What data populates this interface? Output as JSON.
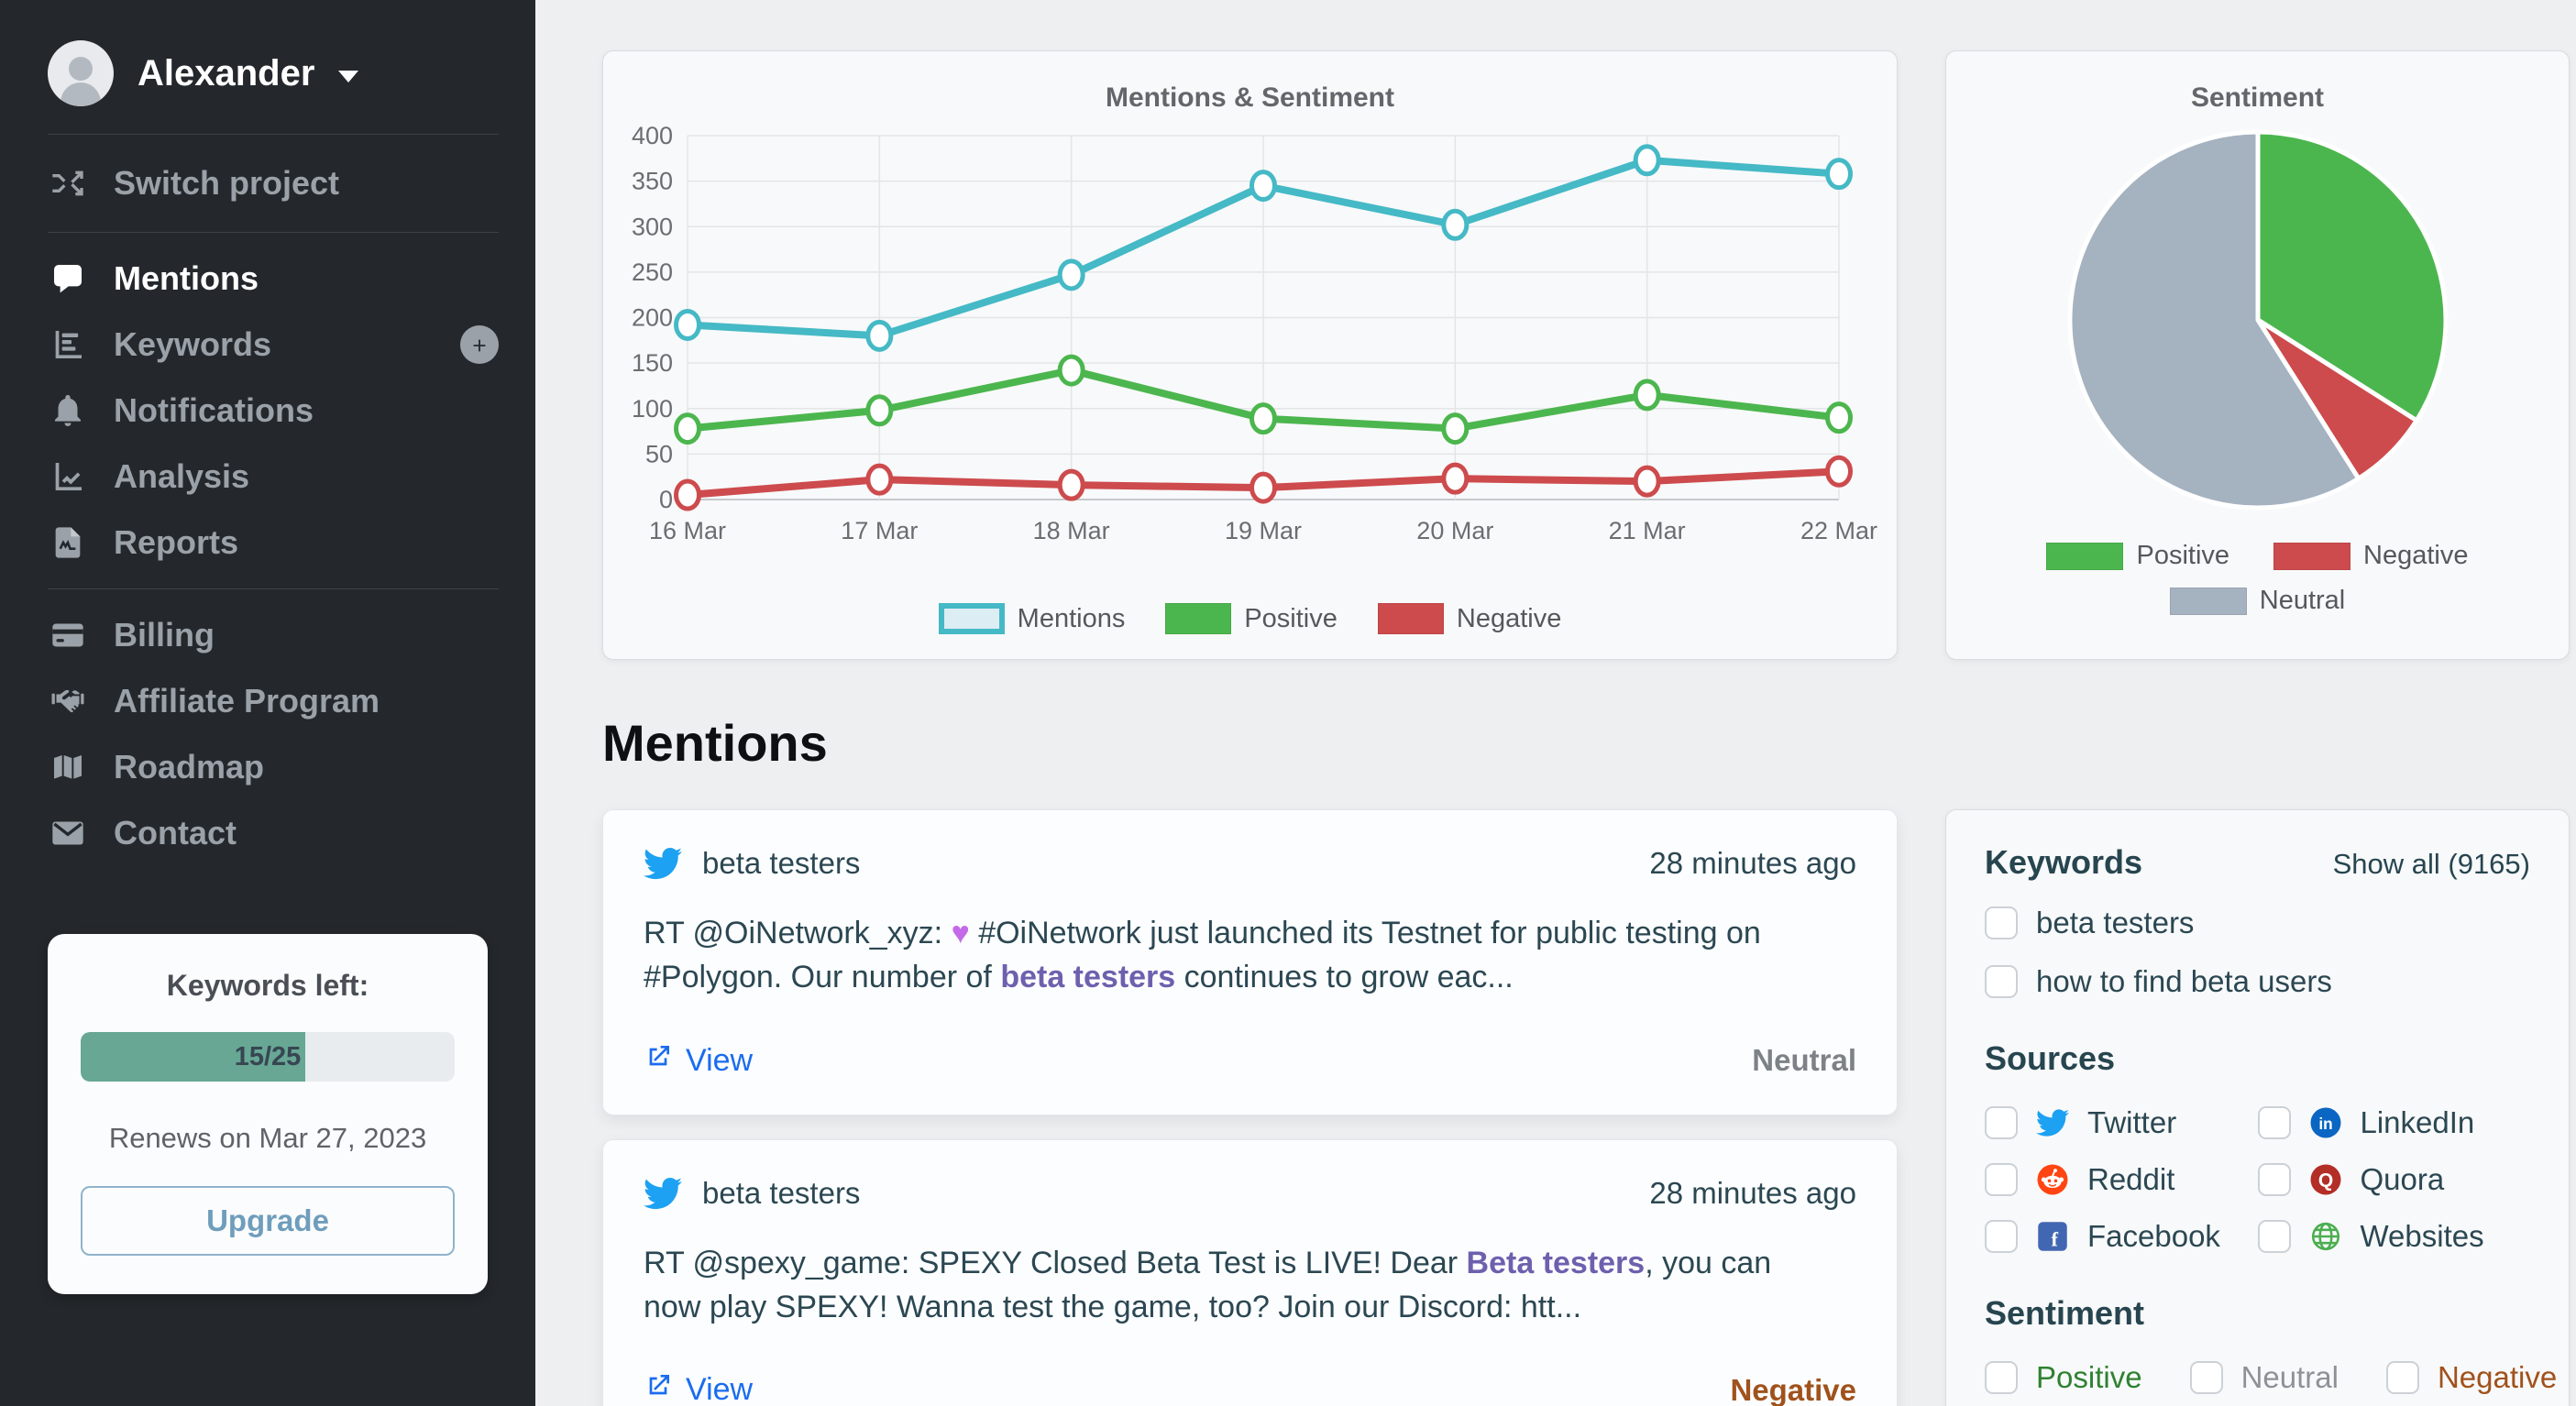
{
  "sidebar": {
    "user": {
      "name": "Alexander"
    },
    "switch_project": "Switch project",
    "nav": [
      {
        "id": "mentions",
        "label": "Mentions",
        "icon": "speech-bubble",
        "active": true
      },
      {
        "id": "keywords",
        "label": "Keywords",
        "icon": "bar-chart",
        "trailing": "plus-circle"
      },
      {
        "id": "notifications",
        "label": "Notifications",
        "icon": "bell"
      },
      {
        "id": "analysis",
        "label": "Analysis",
        "icon": "line-chart"
      },
      {
        "id": "reports",
        "label": "Reports",
        "icon": "file-chart"
      },
      {
        "divider": true
      },
      {
        "id": "billing",
        "label": "Billing",
        "icon": "credit-card"
      },
      {
        "id": "affiliate",
        "label": "Affiliate Program",
        "icon": "handshake"
      },
      {
        "id": "roadmap",
        "label": "Roadmap",
        "icon": "map"
      },
      {
        "id": "contact",
        "label": "Contact",
        "icon": "envelope"
      }
    ],
    "plan": {
      "title": "Keywords left:",
      "used": 15,
      "total": 25,
      "progress_label": "15/25",
      "renews": "Renews on Mar 27, 2023",
      "upgrade_label": "Upgrade"
    }
  },
  "chart_data": [
    {
      "type": "line",
      "title": "Mentions & Sentiment",
      "categories": [
        "16 Mar",
        "17 Mar",
        "18 Mar",
        "19 Mar",
        "20 Mar",
        "21 Mar",
        "22 Mar"
      ],
      "series": [
        {
          "name": "Mentions",
          "color": "#45b9c6",
          "swatch_fill": "#dcedf3",
          "values": [
            192,
            180,
            247,
            345,
            302,
            373,
            358
          ]
        },
        {
          "name": "Positive",
          "color": "#4cb64e",
          "values": [
            78,
            98,
            142,
            89,
            78,
            115,
            90
          ]
        },
        {
          "name": "Negative",
          "color": "#cd4b4d",
          "values": [
            5,
            22,
            16,
            13,
            23,
            20,
            31
          ]
        }
      ],
      "ylim": [
        0,
        400
      ],
      "ytick_step": 50,
      "grid": true,
      "legend_position": "bottom"
    },
    {
      "type": "pie",
      "title": "Sentiment",
      "slices": [
        {
          "label": "Positive",
          "value": 34,
          "color": "#4cb64e"
        },
        {
          "label": "Negative",
          "value": 7,
          "color": "#cd4b4d"
        },
        {
          "label": "Neutral",
          "value": 59,
          "color": "#a5b2c0"
        }
      ],
      "legend_position": "bottom"
    }
  ],
  "mentions": {
    "heading": "Mentions",
    "items": [
      {
        "source": "twitter",
        "keyword": "beta testers",
        "time": "28 minutes ago",
        "segments": [
          {
            "text": "RT @OiNetwork_xyz: "
          },
          {
            "text": "♥",
            "style": "heart"
          },
          {
            "text": " #OiNetwork just launched its Testnet for public testing on #Polygon. Our number of "
          },
          {
            "text": "beta testers",
            "style": "keyword"
          },
          {
            "text": " continues to grow eac..."
          }
        ],
        "link_label": "View",
        "sentiment": "Neutral",
        "sentiment_color": "#7d8287"
      },
      {
        "source": "twitter",
        "keyword": "beta testers",
        "time": "28 minutes ago",
        "segments": [
          {
            "text": "RT @spexy_game: SPEXY Closed Beta Test is LIVE! Dear "
          },
          {
            "text": "Beta testers",
            "style": "keyword"
          },
          {
            "text": ", you can now play SPEXY! Wanna test the game, too? Join our Discord: htt..."
          }
        ],
        "link_label": "View",
        "sentiment": "Negative",
        "sentiment_color": "#a0521c"
      }
    ]
  },
  "filters": {
    "keywords": {
      "title": "Keywords",
      "show_all": "Show all (9165)",
      "options": [
        "beta testers",
        "how to find beta users"
      ]
    },
    "sources": {
      "title": "Sources",
      "options": [
        {
          "label": "Twitter",
          "icon": "twitter"
        },
        {
          "label": "LinkedIn",
          "icon": "linkedin"
        },
        {
          "label": "Reddit",
          "icon": "reddit"
        },
        {
          "label": "Quora",
          "icon": "quora"
        },
        {
          "label": "Facebook",
          "icon": "facebook"
        },
        {
          "label": "Websites",
          "icon": "globe"
        }
      ]
    },
    "sentiment": {
      "title": "Sentiment",
      "options": [
        {
          "label": "Positive",
          "color": "#2f8132"
        },
        {
          "label": "Neutral",
          "color": "#8d9297"
        },
        {
          "label": "Negative",
          "color": "#a0521c"
        }
      ]
    }
  }
}
